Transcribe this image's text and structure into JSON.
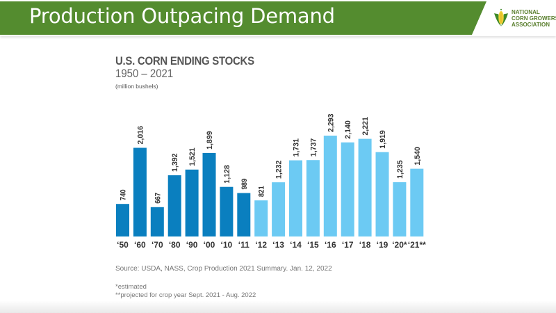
{
  "slide": {
    "title": "Production Outpacing Demand",
    "header_color": "#548c2f",
    "logo": {
      "icon": "corn-icon",
      "lines": [
        "NATIONAL",
        "CORN GROWERS",
        "ASSOCIATION"
      ]
    }
  },
  "chart_data": {
    "type": "bar",
    "title": "U.S. CORN ENDING STOCKS",
    "subtitle": "1950 – 2021",
    "ylabel": "(million bushels)",
    "xlabel": "",
    "ylim": [
      0,
      2400
    ],
    "grid": false,
    "legend": "none",
    "categories": [
      "‘50",
      "‘60",
      "‘70",
      "‘80",
      "‘90",
      "‘00",
      "‘10",
      "‘11",
      "‘12",
      "‘13",
      "‘14",
      "‘15",
      "‘16",
      "‘17",
      "‘18",
      "‘19",
      "‘20*",
      "‘21**"
    ],
    "values": [
      740,
      2016,
      667,
      1392,
      1521,
      1899,
      1128,
      989,
      821,
      1232,
      1731,
      1737,
      2293,
      2140,
      2221,
      1919,
      1235,
      1540
    ],
    "value_labels": [
      "740",
      "2,016",
      "667",
      "1,392",
      "1,521",
      "1,899",
      "1,128",
      "989",
      "821",
      "1,232",
      "1,731",
      "1,737",
      "2,293",
      "2,140",
      "2,221",
      "1,919",
      "1,235",
      "1,540"
    ],
    "groups": [
      "dark",
      "dark",
      "dark",
      "dark",
      "dark",
      "dark",
      "dark",
      "dark",
      "light",
      "light",
      "light",
      "light",
      "light",
      "light",
      "light",
      "light",
      "light",
      "light"
    ],
    "colors": {
      "dark": "#0a7fbf",
      "light": "#6ccaf3"
    }
  },
  "footnotes": {
    "source": "Source: USDA, NASS, Crop Production 2021 Summary. Jan. 12, 2022",
    "estimated": "*estimated",
    "projected": "**projected for crop year Sept. 2021 - Aug. 2022"
  }
}
